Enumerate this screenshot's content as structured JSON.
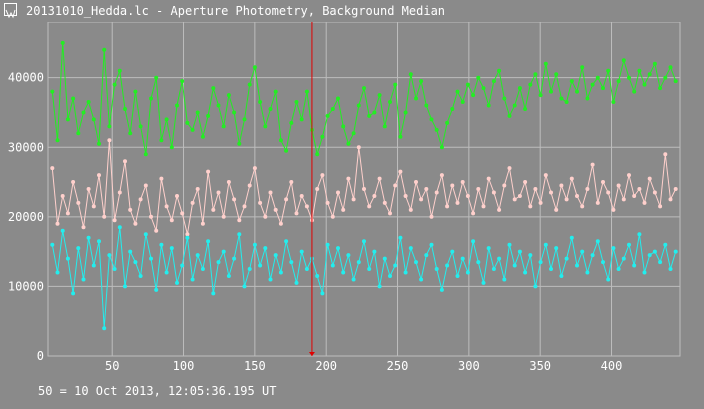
{
  "window": {
    "title": "20131010_Hedda.lc - Aperture Photometry, Background Median"
  },
  "status": {
    "readout": "50 = 10 Oct 2013, 12:05:36.195 UT"
  },
  "colors": {
    "background": "#8a8a8a",
    "grid": "#bdbdbd",
    "axis_text": "#ffffff",
    "cursor": "#e00000",
    "series_green": "#22ee22",
    "series_pink": "#ffd0cc",
    "series_cyan": "#22eeee"
  },
  "chart_data": {
    "type": "line",
    "title": "",
    "xlabel": "",
    "ylabel": "",
    "xlim": [
      5,
      448
    ],
    "ylim": [
      0,
      48000
    ],
    "grid": true,
    "legend": "none",
    "x_ticks": [
      50,
      100,
      150,
      200,
      250,
      300,
      350,
      400
    ],
    "y_ticks": [
      0,
      10000,
      20000,
      30000,
      40000
    ],
    "x_tick_labels": [
      "50",
      "100",
      "150",
      "200",
      "250",
      "300",
      "350",
      "400"
    ],
    "y_tick_labels": [
      "0",
      "10000",
      "20000",
      "30000",
      "40000"
    ],
    "cursor_x": 190,
    "series": [
      {
        "color": "#22ee22",
        "values": [
          38000,
          31000,
          45000,
          34000,
          37000,
          32000,
          35000,
          36500,
          34000,
          30500,
          44000,
          33000,
          39000,
          41000,
          35500,
          32000,
          38000,
          33000,
          29000,
          37000,
          40000,
          31000,
          34000,
          30000,
          36000,
          39500,
          33500,
          32500,
          35000,
          31500,
          34500,
          38500,
          36000,
          33000,
          37500,
          35000,
          30500,
          34000,
          39000,
          41500,
          36500,
          33000,
          35500,
          38000,
          31000,
          29500,
          33500,
          36500,
          34000,
          38000,
          32500,
          29000,
          31500,
          34500,
          35500,
          37000,
          33000,
          30500,
          32000,
          36000,
          38500,
          34500,
          35000,
          37500,
          33000,
          36500,
          39000,
          31500,
          35000,
          40500,
          37000,
          39500,
          36000,
          34000,
          32500,
          30000,
          33500,
          35500,
          38000,
          36500,
          39000,
          37500,
          40000,
          38500,
          36000,
          39500,
          41000,
          37000,
          34500,
          36000,
          38500,
          35500,
          39000,
          40500,
          37500,
          42000,
          38000,
          40500,
          37000,
          36500,
          39500,
          38000,
          41500,
          37000,
          39000,
          40000,
          38500,
          41000,
          36500,
          39500,
          42500,
          40000,
          38000,
          41000,
          39000,
          40500,
          42000,
          38500,
          40000,
          41500,
          39500
        ]
      },
      {
        "color": "#ffd0cc",
        "values": [
          27000,
          19000,
          23000,
          20500,
          25000,
          22000,
          18500,
          24000,
          21500,
          26000,
          20000,
          31000,
          19500,
          23500,
          28000,
          21000,
          19000,
          22500,
          24500,
          20000,
          18000,
          25500,
          21500,
          19500,
          23000,
          20500,
          17500,
          22000,
          24000,
          19000,
          26500,
          21000,
          23500,
          20000,
          25000,
          22500,
          19500,
          21500,
          24500,
          27000,
          22000,
          20000,
          23500,
          21000,
          19000,
          22500,
          25000,
          20500,
          23000,
          21500,
          19500,
          24000,
          26000,
          22000,
          20000,
          23500,
          21000,
          25500,
          22500,
          30000,
          24000,
          21500,
          23000,
          25500,
          22000,
          20500,
          24500,
          26500,
          23000,
          21000,
          25000,
          22500,
          24000,
          20000,
          23500,
          26000,
          21500,
          24500,
          22000,
          25000,
          23000,
          20500,
          24000,
          21500,
          25500,
          23500,
          21000,
          24500,
          27000,
          22500,
          23000,
          25000,
          21500,
          24000,
          22000,
          26000,
          23500,
          21000,
          24500,
          22500,
          25500,
          23000,
          21500,
          24000,
          27500,
          22000,
          25000,
          23500,
          21000,
          24500,
          22500,
          26000,
          23000,
          24000,
          22000,
          25500,
          23500,
          21500,
          29000,
          22500,
          24000
        ]
      },
      {
        "color": "#22eeee",
        "values": [
          16000,
          12000,
          18000,
          14000,
          9000,
          15500,
          11000,
          17000,
          13000,
          16500,
          4000,
          14500,
          12500,
          18500,
          10000,
          15000,
          13500,
          11500,
          17500,
          14000,
          9500,
          16000,
          12000,
          15500,
          10500,
          13000,
          17000,
          11000,
          14500,
          12500,
          16500,
          9000,
          13500,
          15000,
          11500,
          14000,
          17500,
          10000,
          12500,
          16000,
          13000,
          15500,
          11000,
          14500,
          12000,
          16500,
          13500,
          10500,
          15000,
          12500,
          14000,
          11500,
          9000,
          16000,
          13000,
          15500,
          12000,
          14500,
          11000,
          13500,
          16500,
          12500,
          15000,
          10000,
          14000,
          11500,
          13000,
          17000,
          12000,
          15500,
          13500,
          11000,
          14500,
          16000,
          12500,
          9500,
          13000,
          15000,
          11500,
          14000,
          12000,
          16500,
          13500,
          10500,
          15500,
          12500,
          14000,
          11000,
          16000,
          13000,
          15000,
          12000,
          14500,
          10000,
          13500,
          16000,
          12500,
          15500,
          11500,
          14000,
          17000,
          13000,
          15000,
          12000,
          14500,
          16500,
          13500,
          11000,
          15500,
          12500,
          14000,
          16000,
          13000,
          17500,
          12000,
          14500,
          15000,
          13500,
          16000,
          12500,
          15000
        ]
      }
    ]
  }
}
